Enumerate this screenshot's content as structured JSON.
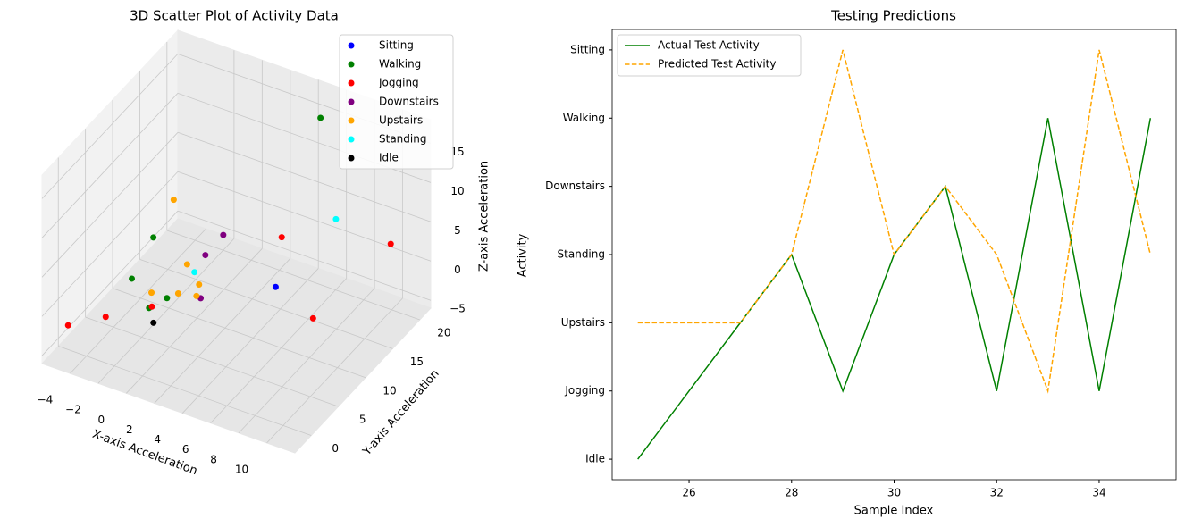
{
  "chart_data": [
    {
      "type": "scatter3d",
      "title": "3D Scatter Plot of Activity Data",
      "xlabel": "X-axis Acceleration",
      "ylabel": "Y-axis Acceleration",
      "zlabel": "Z-axis Acceleration",
      "xlim": [
        -6,
        12
      ],
      "ylim": [
        -3,
        22
      ],
      "zlim": [
        -6,
        18
      ],
      "xticks": [
        {
          "value": -4,
          "label": "−4"
        },
        {
          "value": -2,
          "label": "−2"
        },
        0,
        2,
        4,
        6,
        8,
        10
      ],
      "yticks": [
        0,
        5,
        10,
        15,
        20
      ],
      "zticks": [
        {
          "value": -5,
          "label": "−5"
        },
        0,
        5,
        10,
        15
      ],
      "grid": true,
      "legend": "upper right",
      "series": [
        {
          "name": "Sitting",
          "color": "#0000ff",
          "x": [
            5.6
          ],
          "y": [
            10
          ],
          "z": [
            1.5
          ]
        },
        {
          "name": "Walking",
          "color": "#008000",
          "x": [
            5.7,
            -3.1,
            -2.7,
            -0.2,
            -0.7
          ],
          "y": [
            18,
            10,
            5,
            5,
            3
          ],
          "z": [
            17.2,
            2.3,
            1.0,
            0.1,
            0
          ]
        },
        {
          "name": "Jogging",
          "color": "#ff0000",
          "x": [
            -5.3,
            -3.4,
            -0.5,
            4.1,
            10.7,
            10.2
          ],
          "y": [
            0,
            2,
            3,
            15,
            18,
            5
          ],
          "z": [
            -2.9,
            -2.1,
            0.3,
            3.2,
            4.3,
            4.1
          ]
        },
        {
          "name": "Downstairs",
          "color": "#800080",
          "x": [
            1.1,
            0.6,
            2.2
          ],
          "y": [
            12,
            10,
            5
          ],
          "z": [
            3.8,
            2.4,
            1.6
          ]
        },
        {
          "name": "Upstairs",
          "color": "#ffa500",
          "x": [
            -3.2,
            -0.7,
            -1.3,
            0.6,
            1.7,
            1.9
          ],
          "y": [
            14,
            10,
            5,
            5,
            6,
            5
          ],
          "z": [
            4.1,
            0.4,
            0.1,
            1.2,
            2.3,
            1.7
          ]
        },
        {
          "name": "Standing",
          "color": "#00ffff",
          "x": [
            0.6,
            6.8
          ],
          "y": [
            8,
            18
          ],
          "z": [
            1.7,
            5.0
          ]
        },
        {
          "name": "Idle",
          "color": "#000000",
          "x": [
            0.0
          ],
          "y": [
            2
          ],
          "z": [
            -0.7
          ]
        }
      ]
    },
    {
      "type": "line",
      "title": "Testing Predictions",
      "xlabel": "Sample Index",
      "ylabel": "Activity",
      "x": [
        25,
        26,
        27,
        28,
        29,
        30,
        31,
        32,
        33,
        34,
        35
      ],
      "xlim": [
        24.5,
        35.5
      ],
      "xticks": [
        26,
        28,
        30,
        32,
        34
      ],
      "ylim": [
        -0.3,
        6.3
      ],
      "yticks": [
        {
          "value": 0,
          "label": "Idle"
        },
        {
          "value": 1,
          "label": "Jogging"
        },
        {
          "value": 2,
          "label": "Upstairs"
        },
        {
          "value": 3,
          "label": "Standing"
        },
        {
          "value": 4,
          "label": "Downstairs"
        },
        {
          "value": 5,
          "label": "Walking"
        },
        {
          "value": 6,
          "label": "Sitting"
        }
      ],
      "legend": "upper left",
      "series": [
        {
          "name": "Actual Test Activity",
          "color": "#008000",
          "linestyle": "solid",
          "values": [
            0,
            1,
            2,
            3,
            1,
            3,
            4,
            1,
            5,
            1,
            5
          ]
        },
        {
          "name": "Predicted Test Activity",
          "color": "#ffa500",
          "linestyle": "dashed",
          "values": [
            2,
            2,
            2,
            3,
            6,
            3,
            4,
            3,
            1,
            6,
            3
          ]
        }
      ]
    }
  ]
}
